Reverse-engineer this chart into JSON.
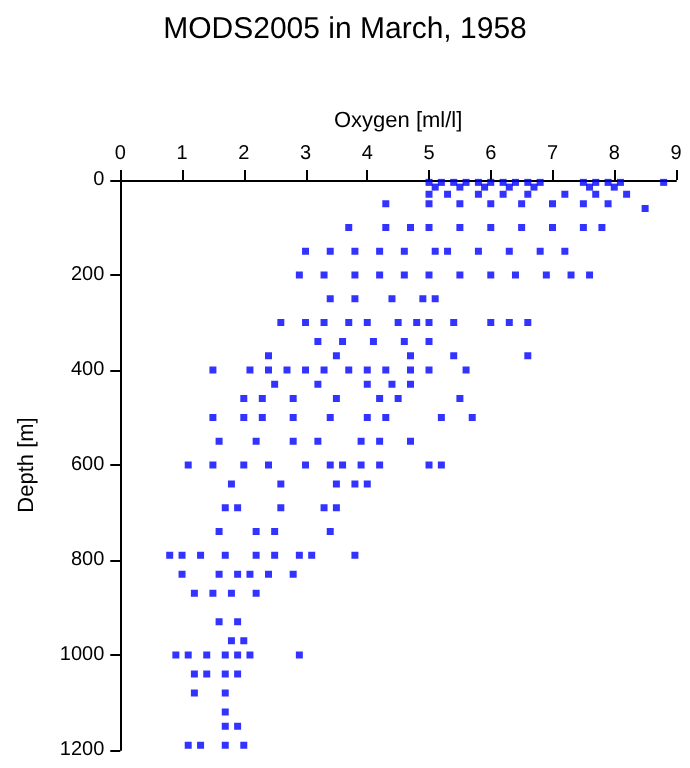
{
  "chart_data": {
    "type": "scatter",
    "title": "MODS2005 in March, 1958",
    "xlabel": "Oxygen [ml/l]",
    "ylabel": "Depth [m]",
    "x": [
      5.0,
      5.2,
      5.4,
      5.6,
      5.8,
      6.0,
      6.2,
      6.4,
      6.6,
      6.8,
      7.5,
      7.7,
      7.9,
      8.1,
      8.8,
      5.1,
      5.5,
      5.9,
      6.3,
      6.7,
      7.6,
      8.0,
      5.0,
      5.3,
      5.8,
      6.2,
      6.6,
      7.2,
      7.7,
      8.2,
      4.3,
      5.0,
      5.5,
      6.0,
      6.5,
      7.0,
      7.5,
      7.9,
      8.5,
      3.7,
      4.3,
      4.7,
      5.0,
      5.5,
      6.0,
      6.5,
      7.0,
      7.5,
      7.8,
      3.0,
      3.4,
      3.8,
      4.2,
      4.6,
      5.1,
      5.3,
      5.8,
      6.3,
      6.8,
      7.2,
      2.9,
      3.3,
      3.8,
      4.2,
      4.6,
      5.0,
      5.5,
      6.0,
      6.4,
      6.9,
      7.3,
      7.6,
      3.4,
      3.8,
      4.4,
      4.9,
      5.1,
      2.6,
      3.0,
      3.3,
      3.7,
      4.0,
      4.5,
      4.8,
      5.0,
      5.4,
      6.0,
      6.3,
      6.6,
      3.2,
      3.6,
      4.1,
      4.6,
      5.0,
      2.4,
      3.5,
      4.7,
      5.4,
      6.6,
      1.5,
      2.1,
      2.4,
      2.7,
      3.0,
      3.3,
      3.7,
      4.0,
      4.3,
      4.7,
      5.0,
      5.6,
      2.5,
      3.2,
      4.0,
      4.4,
      4.7,
      2.0,
      2.3,
      2.8,
      3.5,
      4.2,
      4.5,
      5.5,
      1.5,
      2.0,
      2.3,
      2.8,
      3.4,
      4.0,
      4.3,
      5.2,
      5.7,
      1.6,
      2.2,
      2.8,
      3.2,
      3.9,
      4.2,
      4.7,
      1.1,
      1.5,
      2.0,
      2.4,
      3.0,
      3.4,
      3.6,
      3.9,
      4.2,
      5.0,
      5.2,
      1.8,
      2.6,
      3.5,
      3.8,
      4.0,
      1.7,
      1.9,
      2.6,
      3.3,
      3.5,
      1.6,
      2.2,
      2.5,
      3.4,
      0.8,
      1.0,
      1.3,
      1.7,
      2.2,
      2.5,
      2.9,
      3.1,
      3.8,
      1.0,
      1.6,
      1.9,
      2.1,
      2.4,
      2.8,
      1.2,
      1.5,
      1.8,
      2.2,
      1.6,
      1.9,
      1.8,
      2.0,
      0.9,
      1.1,
      1.4,
      1.7,
      1.9,
      2.1,
      2.9,
      1.2,
      1.4,
      1.7,
      1.9,
      1.2,
      1.7,
      1.7,
      1.7,
      1.9,
      1.1,
      1.3,
      1.7,
      2.0
    ],
    "values": [
      5,
      5,
      5,
      5,
      5,
      5,
      5,
      5,
      5,
      5,
      5,
      5,
      5,
      5,
      5,
      15,
      15,
      15,
      15,
      15,
      15,
      15,
      30,
      30,
      30,
      30,
      30,
      30,
      30,
      30,
      50,
      50,
      50,
      50,
      50,
      50,
      50,
      50,
      60,
      100,
      100,
      100,
      100,
      100,
      100,
      100,
      100,
      100,
      100,
      150,
      150,
      150,
      150,
      150,
      150,
      150,
      150,
      150,
      150,
      150,
      200,
      200,
      200,
      200,
      200,
      200,
      200,
      200,
      200,
      200,
      200,
      200,
      250,
      250,
      250,
      250,
      250,
      300,
      300,
      300,
      300,
      300,
      300,
      300,
      300,
      300,
      300,
      300,
      300,
      340,
      340,
      340,
      340,
      340,
      370,
      370,
      370,
      370,
      370,
      400,
      400,
      400,
      400,
      400,
      400,
      400,
      400,
      400,
      400,
      400,
      400,
      430,
      430,
      430,
      430,
      430,
      460,
      460,
      460,
      460,
      460,
      460,
      460,
      500,
      500,
      500,
      500,
      500,
      500,
      500,
      500,
      500,
      550,
      550,
      550,
      550,
      550,
      550,
      550,
      600,
      600,
      600,
      600,
      600,
      600,
      600,
      600,
      600,
      600,
      600,
      640,
      640,
      640,
      640,
      640,
      690,
      690,
      690,
      690,
      690,
      740,
      740,
      740,
      740,
      790,
      790,
      790,
      790,
      790,
      790,
      790,
      790,
      790,
      830,
      830,
      830,
      830,
      830,
      830,
      870,
      870,
      870,
      870,
      930,
      930,
      970,
      970,
      1000,
      1000,
      1000,
      1000,
      1000,
      1000,
      1000,
      1040,
      1040,
      1040,
      1040,
      1080,
      1080,
      1120,
      1150,
      1150,
      1190,
      1190,
      1190,
      1190
    ],
    "color": "#0000ff",
    "marker": "square",
    "xlim": [
      0,
      9
    ],
    "xticks": [
      0,
      1,
      2,
      3,
      4,
      5,
      6,
      7,
      8,
      9
    ],
    "ylim": [
      1200,
      0
    ],
    "yticks": [
      0,
      200,
      400,
      600,
      800,
      1000,
      1200
    ],
    "grid": false
  }
}
